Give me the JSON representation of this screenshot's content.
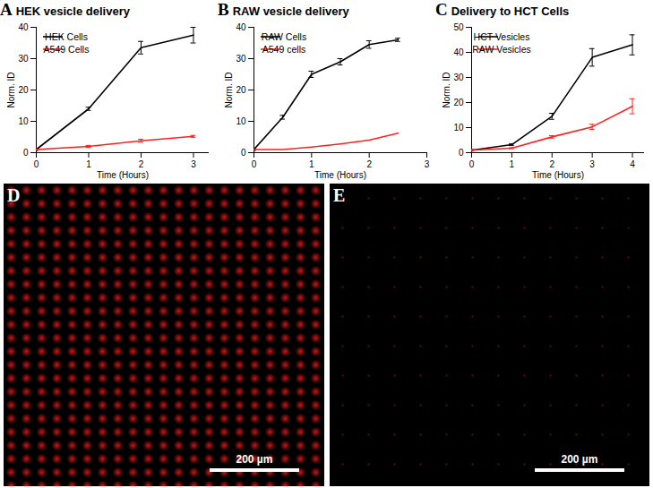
{
  "chart_data": [
    {
      "type": "line",
      "title": "HEK vesicle delivery",
      "annotations": [
        "A"
      ],
      "x_label": "Time (Hours)",
      "y_label": "Norm. ID",
      "x": [
        0,
        1,
        2,
        3
      ],
      "xlim": [
        0,
        3.3
      ],
      "xticks": [
        0,
        1,
        2,
        3
      ],
      "ylim": [
        0,
        40
      ],
      "yticks": [
        0,
        10,
        20,
        30,
        40
      ],
      "legend": "upper left",
      "series": [
        {
          "name": "HEK Cells",
          "color": "#000000",
          "values": [
            1,
            14,
            33.5,
            37.5
          ],
          "errors": [
            0.3,
            0.5,
            2,
            2.5
          ]
        },
        {
          "name": "A549 Cells",
          "color": "#ff2020",
          "values": [
            1,
            2,
            3.8,
            5.2
          ],
          "errors": [
            0.2,
            0.3,
            0.5,
            0.3
          ]
        }
      ]
    },
    {
      "type": "line",
      "title": "RAW vesicle delivery",
      "annotations": [
        "B"
      ],
      "x_label": "Time (Hours)",
      "y_label": "Norm. ID",
      "x": [
        0,
        0.5,
        1,
        1.5,
        2,
        2.5
      ],
      "xlim": [
        0,
        3
      ],
      "xticks": [
        0,
        1,
        2,
        3
      ],
      "ylim": [
        0,
        40
      ],
      "yticks": [
        0,
        10,
        20,
        30,
        40
      ],
      "legend": "upper left",
      "series": [
        {
          "name": "RAW Cells",
          "color": "#000000",
          "values": [
            1,
            11.3,
            25,
            29,
            34.5,
            36
          ],
          "errors": [
            0.3,
            0.6,
            1,
            1,
            1.2,
            0.5
          ]
        },
        {
          "name": "A549 cells",
          "color": "#ff2020",
          "values": [
            1,
            1,
            1.8,
            2.8,
            4,
            6.2
          ]
        }
      ]
    },
    {
      "type": "line",
      "title": "Delivery to HCT Cells",
      "annotations": [
        "C"
      ],
      "x_label": "Time (Hours)",
      "y_label": "Norm. ID",
      "x": [
        0,
        1,
        2,
        3,
        4
      ],
      "xlim": [
        0,
        4.3
      ],
      "xticks": [
        0,
        1,
        2,
        3,
        4
      ],
      "ylim": [
        0,
        50
      ],
      "yticks": [
        0,
        10,
        20,
        30,
        40,
        50
      ],
      "legend": "upper left",
      "series": [
        {
          "name": "HCT Vesicles",
          "color": "#000000",
          "values": [
            1,
            3.2,
            14.5,
            38,
            43
          ],
          "errors": [
            0.3,
            0.3,
            1.2,
            3.5,
            4
          ]
        },
        {
          "name": "RAW Vesicles",
          "color": "#ff2020",
          "values": [
            1,
            1.8,
            6.3,
            10.3,
            18.5
          ],
          "errors": [
            0.2,
            0.2,
            0.5,
            1,
            3
          ]
        }
      ]
    }
  ],
  "images": [
    {
      "label": "D",
      "scale_bar": "200 µm"
    },
    {
      "label": "E",
      "scale_bar": "200 µm"
    }
  ]
}
